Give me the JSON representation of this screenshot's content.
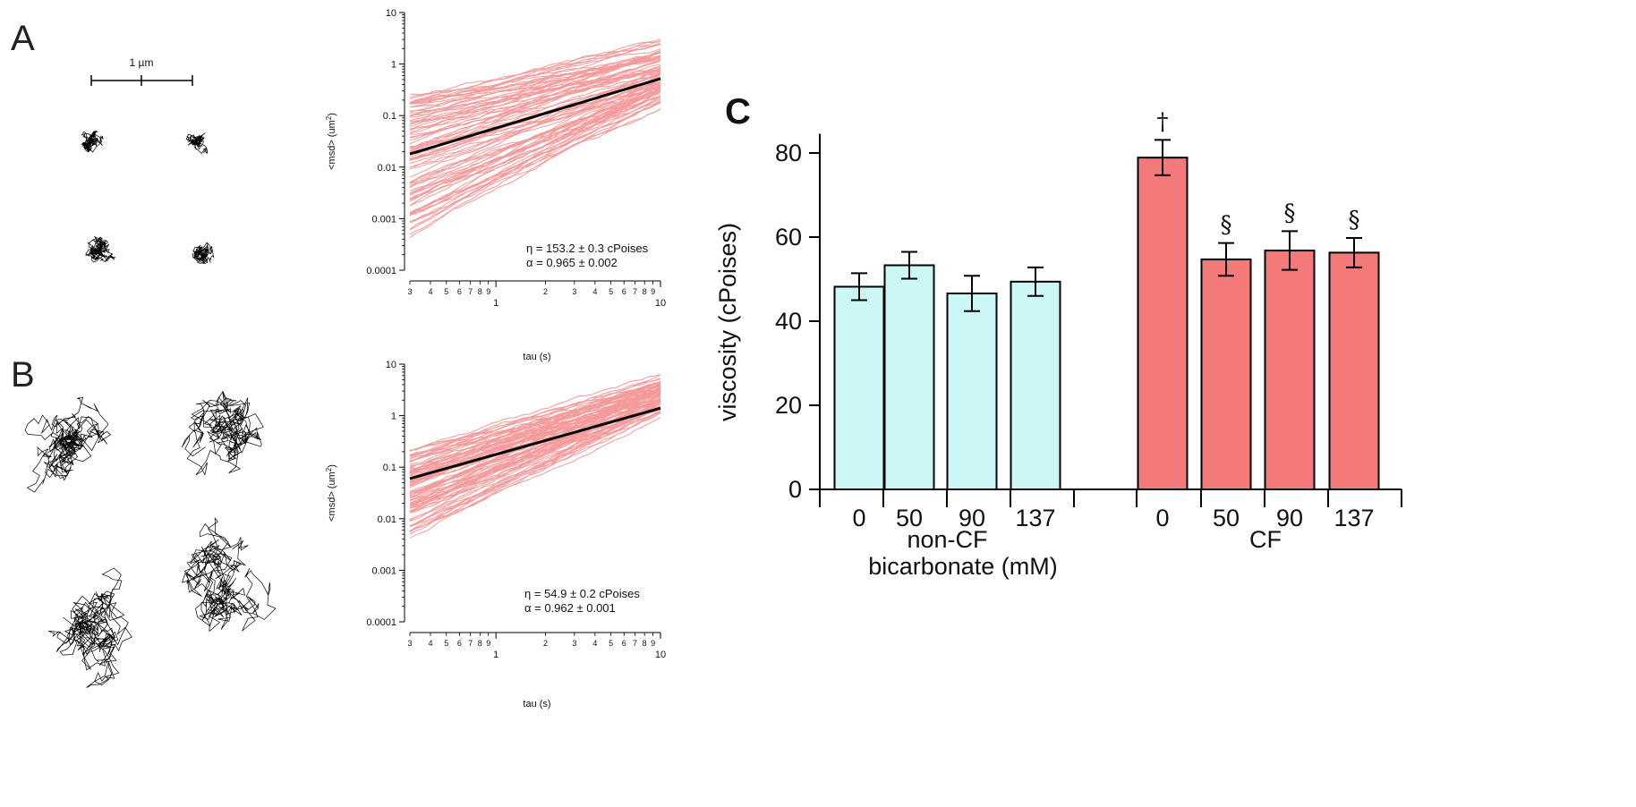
{
  "panels": {
    "a_label": "A",
    "b_label": "B",
    "c_label": "C",
    "scale_bar_label": "1 µm"
  },
  "chart_data": [
    {
      "id": "A",
      "type": "line",
      "title": "",
      "xlabel": "tau (s)",
      "ylabel": "<msd> (um2)",
      "x_scale": "log",
      "y_scale": "log",
      "xlim": [
        0.3,
        10
      ],
      "ylim": [
        0.0001,
        10
      ],
      "x_major_ticks": [
        "1",
        "10"
      ],
      "x_minor_ticks": [
        "3",
        "4",
        "5",
        "6",
        "7",
        "8",
        "9",
        "2",
        "3",
        "4",
        "5",
        "6",
        "7",
        "8",
        "9"
      ],
      "y_ticks": [
        "0.0001",
        "0.001",
        "0.01",
        "0.1",
        "1",
        "10"
      ],
      "mean_fit": {
        "x": [
          0.3,
          10
        ],
        "y": [
          0.018,
          0.52
        ]
      },
      "individual_traces": {
        "count": 90,
        "y_at_0.3_range": [
          0.0004,
          0.25
        ],
        "y_at_10_range": [
          0.045,
          3.8
        ]
      },
      "annotation_eta": "η =  153.2 ± 0.3  cPoises",
      "annotation_alpha": "α = 0.965 ± 0.002"
    },
    {
      "id": "B",
      "type": "line",
      "title": "",
      "xlabel": "tau (s)",
      "ylabel": "<msd> (um2)",
      "x_scale": "log",
      "y_scale": "log",
      "xlim": [
        0.3,
        10
      ],
      "ylim": [
        0.0001,
        10
      ],
      "x_major_ticks": [
        "1",
        "10"
      ],
      "x_minor_ticks": [
        "3",
        "4",
        "5",
        "6",
        "7",
        "8",
        "9",
        "2",
        "3",
        "4",
        "5",
        "6",
        "7",
        "8",
        "9"
      ],
      "y_ticks": [
        "0.0001",
        "0.001",
        "0.01",
        "0.1",
        "1",
        "10"
      ],
      "mean_fit": {
        "x": [
          0.3,
          10
        ],
        "y": [
          0.06,
          1.4
        ]
      },
      "individual_traces": {
        "count": 90,
        "y_at_0.3_range": [
          0.004,
          0.22
        ],
        "y_at_10_range": [
          0.5,
          7.5
        ]
      },
      "annotation_eta": "η =  54.9 ± 0.2  cPoises",
      "annotation_alpha": "α = 0.962 ±  0.001"
    },
    {
      "id": "C",
      "type": "bar",
      "title": "",
      "xlabel": "bicarbonate  (mM)",
      "ylabel": "viscosity  (cPoises)",
      "ylim": [
        0,
        85
      ],
      "y_ticks": [
        0,
        20,
        40,
        60,
        80
      ],
      "groups": [
        {
          "name": "non-CF",
          "color": "#ccf7f7",
          "categories": [
            "0",
            "50",
            "90",
            "137"
          ],
          "values": [
            48.2,
            53.3,
            46.6,
            49.4
          ],
          "errors": [
            3.2,
            3.2,
            4.2,
            3.4
          ],
          "marks": [
            "",
            "",
            "",
            ""
          ]
        },
        {
          "name": "CF",
          "color": "#f47a7a",
          "categories": [
            "0",
            "50",
            "90",
            "137"
          ],
          "values": [
            78.9,
            54.7,
            56.8,
            56.3
          ],
          "errors": [
            4.2,
            3.9,
            4.6,
            3.5
          ],
          "marks": [
            "†",
            "§",
            "§",
            "§"
          ]
        }
      ]
    }
  ]
}
